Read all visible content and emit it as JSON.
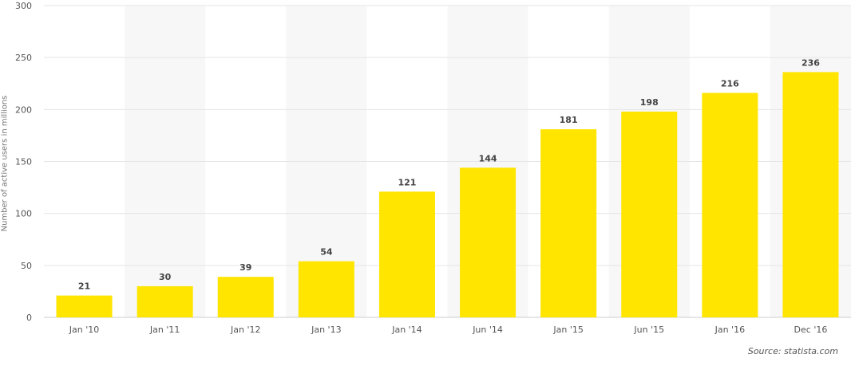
{
  "chart_data": {
    "type": "bar",
    "categories": [
      "Jan '10",
      "Jan '11",
      "Jan '12",
      "Jan '13",
      "Jan '14",
      "Jun '14",
      "Jan '15",
      "Jun '15",
      "Jan '16",
      "Dec '16"
    ],
    "values": [
      21,
      30,
      39,
      54,
      121,
      144,
      181,
      198,
      216,
      236
    ],
    "title": "",
    "xlabel": "",
    "ylabel": "Number of active users in millions",
    "ylim": [
      0,
      300
    ],
    "yticks": [
      0,
      50,
      100,
      150,
      200,
      250,
      300
    ],
    "grid": true,
    "bar_color": "#ffe500",
    "band_color": "#f7f7f7",
    "grid_color": "#e5e5e5"
  },
  "source_text": "Source: statista.com"
}
